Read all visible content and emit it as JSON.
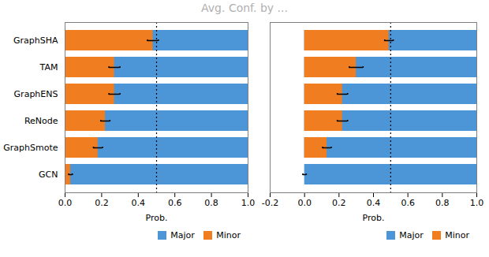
{
  "chart_data": [
    {
      "type": "bar",
      "title": "Avg. Conf. by ...",
      "orientation": "horizontal",
      "categories": [
        "GraphSHA",
        "TAM",
        "GraphENS",
        "ReNode",
        "GraphSmote",
        "GCN"
      ],
      "series": [
        {
          "name": "Major",
          "color": "#4c96d7",
          "values": [
            1.0,
            1.0,
            1.0,
            1.0,
            1.0,
            1.0
          ]
        },
        {
          "name": "Minor",
          "color": "#f07d20",
          "values": [
            0.48,
            0.27,
            0.27,
            0.22,
            0.18,
            0.03
          ],
          "errors": [
            0.03,
            0.03,
            0.03,
            0.025,
            0.025,
            0.01
          ]
        }
      ],
      "vline": 0.5,
      "xlabel": "Prob.",
      "xlim": [
        0.0,
        1.0
      ],
      "xticks": [
        {
          "value": 0.0,
          "label": "0.0"
        },
        0.2,
        0.4,
        0.6,
        0.8,
        {
          "value": 1.0,
          "label": "1.0"
        }
      ],
      "legend": "lower right"
    },
    {
      "type": "bar",
      "orientation": "horizontal",
      "categories": [
        "GraphSHA",
        "TAM",
        "GraphENS",
        "ReNode",
        "GraphSmote",
        "GCN"
      ],
      "series": [
        {
          "name": "Major",
          "color": "#4c96d7",
          "values": [
            1.0,
            1.0,
            1.0,
            1.0,
            1.0,
            1.0
          ]
        },
        {
          "name": "Minor",
          "color": "#f07d20",
          "values": [
            0.49,
            0.3,
            0.22,
            0.22,
            0.13,
            0.0
          ],
          "errors": [
            0.025,
            0.04,
            0.03,
            0.03,
            0.025,
            0.01
          ]
        }
      ],
      "vline": 0.5,
      "xlabel": "Prob.",
      "xlim": [
        -0.2,
        1.0
      ],
      "xticks": [
        -0.2,
        {
          "value": 0.0,
          "label": "0.0"
        },
        0.2,
        0.4,
        0.6,
        0.8,
        {
          "value": 1.0,
          "label": "1.0"
        }
      ],
      "legend": "lower right",
      "tick_labels": "x"
    }
  ]
}
